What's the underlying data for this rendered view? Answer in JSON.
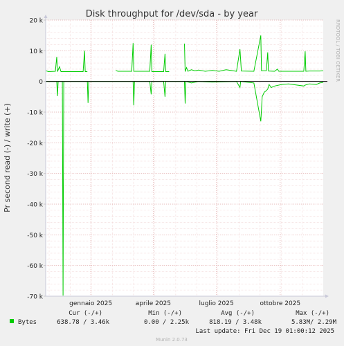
{
  "chart_data": {
    "type": "line",
    "title": "Disk throughput for /dev/sda - by year",
    "ylabel": "Pr second read (-) / write (+)",
    "ylim": [
      -70000,
      20000
    ],
    "y_ticks": [
      {
        "value": 20000,
        "label": "20 k"
      },
      {
        "value": 10000,
        "label": "10 k"
      },
      {
        "value": 0,
        "label": "0"
      },
      {
        "value": -10000,
        "label": "-10 k"
      },
      {
        "value": -20000,
        "label": "-20 k"
      },
      {
        "value": -30000,
        "label": "-30 k"
      },
      {
        "value": -40000,
        "label": "-40 k"
      },
      {
        "value": -50000,
        "label": "-50 k"
      },
      {
        "value": -60000,
        "label": "-60 k"
      },
      {
        "value": -70000,
        "label": "-70 k"
      }
    ],
    "x_range_days": [
      0,
      400
    ],
    "x_ticks": [
      {
        "day": 65,
        "label": "gennaio 2025"
      },
      {
        "day": 155,
        "label": "aprile 2025"
      },
      {
        "day": 246,
        "label": "luglio 2025"
      },
      {
        "day": 338,
        "label": "ottobre 2025"
      }
    ],
    "grid": true,
    "watermark": "RRDTOOL / TOBI OETIKER",
    "series": [
      {
        "name": "Bytes",
        "color": "#00cc00",
        "write": [
          [
            0,
            3500
          ],
          [
            4,
            3200
          ],
          [
            14,
            3300
          ],
          [
            16,
            8000
          ],
          [
            17,
            3200
          ],
          [
            20,
            4800
          ],
          [
            22,
            3200
          ],
          [
            54,
            3200
          ],
          [
            56,
            10000
          ],
          [
            57,
            3200
          ],
          [
            60,
            3200
          ],
          [
            61,
            null
          ],
          [
            100,
            null
          ],
          [
            101,
            3600
          ],
          [
            104,
            3300
          ],
          [
            124,
            3300
          ],
          [
            126,
            12500
          ],
          [
            127,
            3300
          ],
          [
            150,
            3300
          ],
          [
            152,
            12000
          ],
          [
            153,
            3200
          ],
          [
            170,
            3200
          ],
          [
            172,
            9000
          ],
          [
            173,
            3200
          ],
          [
            178,
            3200
          ],
          [
            179,
            null
          ],
          [
            199,
            null
          ],
          [
            200,
            12300
          ],
          [
            201,
            3200
          ],
          [
            203,
            4500
          ],
          [
            205,
            3300
          ],
          [
            210,
            3800
          ],
          [
            215,
            3500
          ],
          [
            220,
            3700
          ],
          [
            230,
            3300
          ],
          [
            240,
            3600
          ],
          [
            250,
            3300
          ],
          [
            260,
            3800
          ],
          [
            275,
            3300
          ],
          [
            280,
            10500
          ],
          [
            282,
            3400
          ],
          [
            300,
            3300
          ],
          [
            310,
            15000
          ],
          [
            311,
            3500
          ],
          [
            318,
            3500
          ],
          [
            320,
            9500
          ],
          [
            321,
            3400
          ],
          [
            330,
            3300
          ],
          [
            334,
            4000
          ],
          [
            336,
            3300
          ],
          [
            372,
            3300
          ],
          [
            374,
            9800
          ],
          [
            375,
            3300
          ],
          [
            380,
            3400
          ],
          [
            395,
            3400
          ],
          [
            400,
            3500
          ]
        ],
        "read": [
          [
            0,
            0
          ],
          [
            16,
            0
          ],
          [
            17,
            -4800
          ],
          [
            18,
            0
          ],
          [
            24,
            0
          ],
          [
            25,
            -69800
          ],
          [
            26,
            0
          ],
          [
            60,
            0
          ],
          [
            61,
            -7000
          ],
          [
            62,
            0
          ],
          [
            100,
            0
          ],
          [
            126,
            0
          ],
          [
            127,
            -7800
          ],
          [
            128,
            0
          ],
          [
            150,
            0
          ],
          [
            152,
            -4200
          ],
          [
            153,
            0
          ],
          [
            170,
            0
          ],
          [
            172,
            -5000
          ],
          [
            173,
            0
          ],
          [
            200,
            0
          ],
          [
            201,
            -7200
          ],
          [
            202,
            0
          ],
          [
            210,
            -500
          ],
          [
            220,
            0
          ],
          [
            240,
            -200
          ],
          [
            275,
            0
          ],
          [
            280,
            -2000
          ],
          [
            281,
            0
          ],
          [
            300,
            -500
          ],
          [
            310,
            -13000
          ],
          [
            312,
            -5000
          ],
          [
            315,
            -3500
          ],
          [
            318,
            -3000
          ],
          [
            320,
            -2500
          ],
          [
            322,
            -1000
          ],
          [
            325,
            -2000
          ],
          [
            330,
            -1500
          ],
          [
            340,
            -1000
          ],
          [
            350,
            -800
          ],
          [
            372,
            -1500
          ],
          [
            374,
            -1200
          ],
          [
            380,
            -800
          ],
          [
            390,
            -1000
          ],
          [
            395,
            -500
          ],
          [
            400,
            -300
          ]
        ]
      }
    ],
    "legend": {
      "headers": [
        "Cur (-/+)",
        "Min (-/+)",
        "Avg (-/+)",
        "Max (-/+)"
      ],
      "rows": [
        {
          "name": "Bytes",
          "color": "#00cc00",
          "cur": "638.78 /  3.46k",
          "min": "0.00 /  2.25k",
          "avg": "818.19 /  3.48k",
          "max": "5.83M/  2.29M"
        }
      ]
    },
    "last_update": "Last update: Fri Dec 19 01:00:12 2025",
    "footer": "Munin 2.0.73"
  }
}
